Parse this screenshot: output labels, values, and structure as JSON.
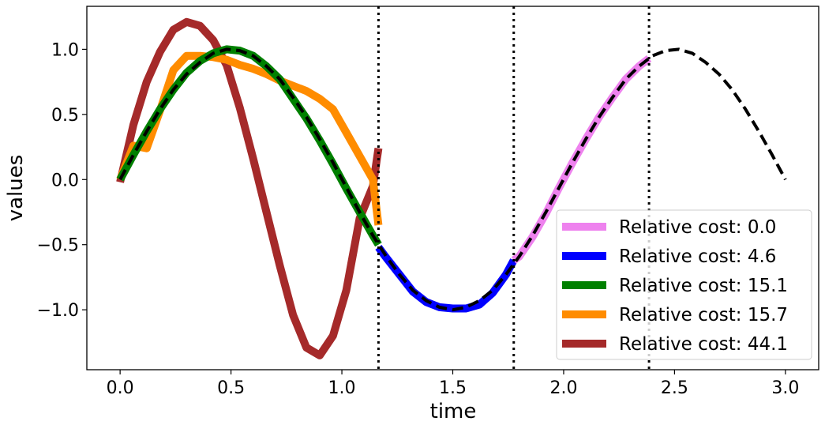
{
  "chart_data": {
    "type": "line",
    "title": "",
    "xlabel": "time",
    "ylabel": "values",
    "xlim": [
      -0.15,
      3.15
    ],
    "ylim": [
      -1.46,
      1.33
    ],
    "xticks": [
      0.0,
      0.5,
      1.0,
      1.5,
      2.0,
      2.5,
      3.0
    ],
    "xtick_labels": [
      "0.0",
      "0.5",
      "1.0",
      "1.5",
      "2.0",
      "2.5",
      "3.0"
    ],
    "yticks": [
      -1.0,
      -0.5,
      0.0,
      0.5,
      1.0
    ],
    "ytick_labels": [
      "−1.0",
      "−0.5",
      "0.0",
      "0.5",
      "1.0"
    ],
    "grid": false,
    "legend_position": "lower-right",
    "vlines": [
      1.165,
      1.775,
      2.385
    ],
    "reference": {
      "name": "reference",
      "color": "#000000",
      "x": [
        0.0,
        0.06,
        0.12,
        0.18,
        0.24,
        0.3,
        0.36,
        0.42,
        0.48,
        0.54,
        0.6,
        0.66,
        0.72,
        0.78,
        0.84,
        0.9,
        0.96,
        1.02,
        1.08,
        1.14,
        1.2,
        1.26,
        1.32,
        1.38,
        1.44,
        1.5,
        1.56,
        1.62,
        1.68,
        1.74,
        1.8,
        1.86,
        1.92,
        1.98,
        2.04,
        2.1,
        2.16,
        2.22,
        2.28,
        2.34,
        2.4,
        2.46,
        2.52,
        2.58,
        2.64,
        2.7,
        2.76,
        2.82,
        2.88,
        2.94,
        3.0
      ],
      "values": [
        0.0,
        0.19,
        0.37,
        0.54,
        0.69,
        0.81,
        0.9,
        0.97,
        1.0,
        0.99,
        0.95,
        0.87,
        0.77,
        0.63,
        0.48,
        0.31,
        0.13,
        -0.06,
        -0.25,
        -0.43,
        -0.59,
        -0.73,
        -0.85,
        -0.93,
        -0.98,
        -1.0,
        -0.98,
        -0.93,
        -0.85,
        -0.73,
        -0.59,
        -0.43,
        -0.25,
        -0.06,
        0.13,
        0.31,
        0.48,
        0.63,
        0.77,
        0.87,
        0.95,
        0.99,
        1.0,
        0.97,
        0.9,
        0.81,
        0.69,
        0.54,
        0.37,
        0.19,
        0.0
      ]
    },
    "series": [
      {
        "name": "Relative cost: 0.0",
        "color": "#ee82ee",
        "x": [
          1.775,
          1.8,
          1.86,
          1.92,
          1.98,
          2.04,
          2.1,
          2.16,
          2.22,
          2.28,
          2.34,
          2.385
        ],
        "values": [
          -0.62,
          -0.59,
          -0.44,
          -0.26,
          -0.06,
          0.13,
          0.31,
          0.48,
          0.63,
          0.77,
          0.87,
          0.93
        ]
      },
      {
        "name": "Relative cost: 4.6",
        "color": "#0000ff",
        "x": [
          1.165,
          1.2,
          1.26,
          1.32,
          1.38,
          1.44,
          1.5,
          1.56,
          1.62,
          1.68,
          1.74,
          1.775
        ],
        "values": [
          -0.52,
          -0.6,
          -0.73,
          -0.86,
          -0.94,
          -0.98,
          -0.99,
          -0.99,
          -0.96,
          -0.87,
          -0.73,
          -0.62
        ]
      },
      {
        "name": "Relative cost: 15.1",
        "color": "#008000",
        "x": [
          0.0,
          0.06,
          0.12,
          0.18,
          0.24,
          0.3,
          0.36,
          0.42,
          0.48,
          0.54,
          0.6,
          0.66,
          0.72,
          0.78,
          0.84,
          0.9,
          0.96,
          1.02,
          1.08,
          1.14,
          1.165
        ],
        "values": [
          0.0,
          0.19,
          0.37,
          0.54,
          0.69,
          0.82,
          0.91,
          0.97,
          1.0,
          0.99,
          0.95,
          0.87,
          0.77,
          0.62,
          0.47,
          0.3,
          0.12,
          -0.07,
          -0.25,
          -0.43,
          -0.5
        ]
      },
      {
        "name": "Relative cost: 15.7",
        "color": "#ff8c00",
        "x": [
          0.0,
          0.06,
          0.12,
          0.18,
          0.24,
          0.3,
          0.36,
          0.42,
          0.48,
          0.54,
          0.6,
          0.66,
          0.72,
          0.78,
          0.84,
          0.9,
          0.96,
          1.02,
          1.08,
          1.14,
          1.165
        ],
        "values": [
          0.0,
          0.26,
          0.24,
          0.53,
          0.84,
          0.95,
          0.95,
          0.94,
          0.92,
          0.88,
          0.85,
          0.81,
          0.76,
          0.72,
          0.68,
          0.62,
          0.54,
          0.36,
          0.18,
          0.0,
          -0.35
        ]
      },
      {
        "name": "Relative cost: 44.1",
        "color": "#a52a2a",
        "x": [
          0.0,
          0.06,
          0.12,
          0.18,
          0.24,
          0.3,
          0.36,
          0.42,
          0.48,
          0.54,
          0.6,
          0.66,
          0.72,
          0.78,
          0.84,
          0.9,
          0.96,
          1.02,
          1.08,
          1.14,
          1.165
        ],
        "values": [
          -0.02,
          0.42,
          0.75,
          0.98,
          1.15,
          1.21,
          1.18,
          1.07,
          0.88,
          0.55,
          0.16,
          -0.25,
          -0.66,
          -1.04,
          -1.29,
          -1.35,
          -1.2,
          -0.85,
          -0.3,
          -0.05,
          0.24
        ]
      }
    ]
  }
}
